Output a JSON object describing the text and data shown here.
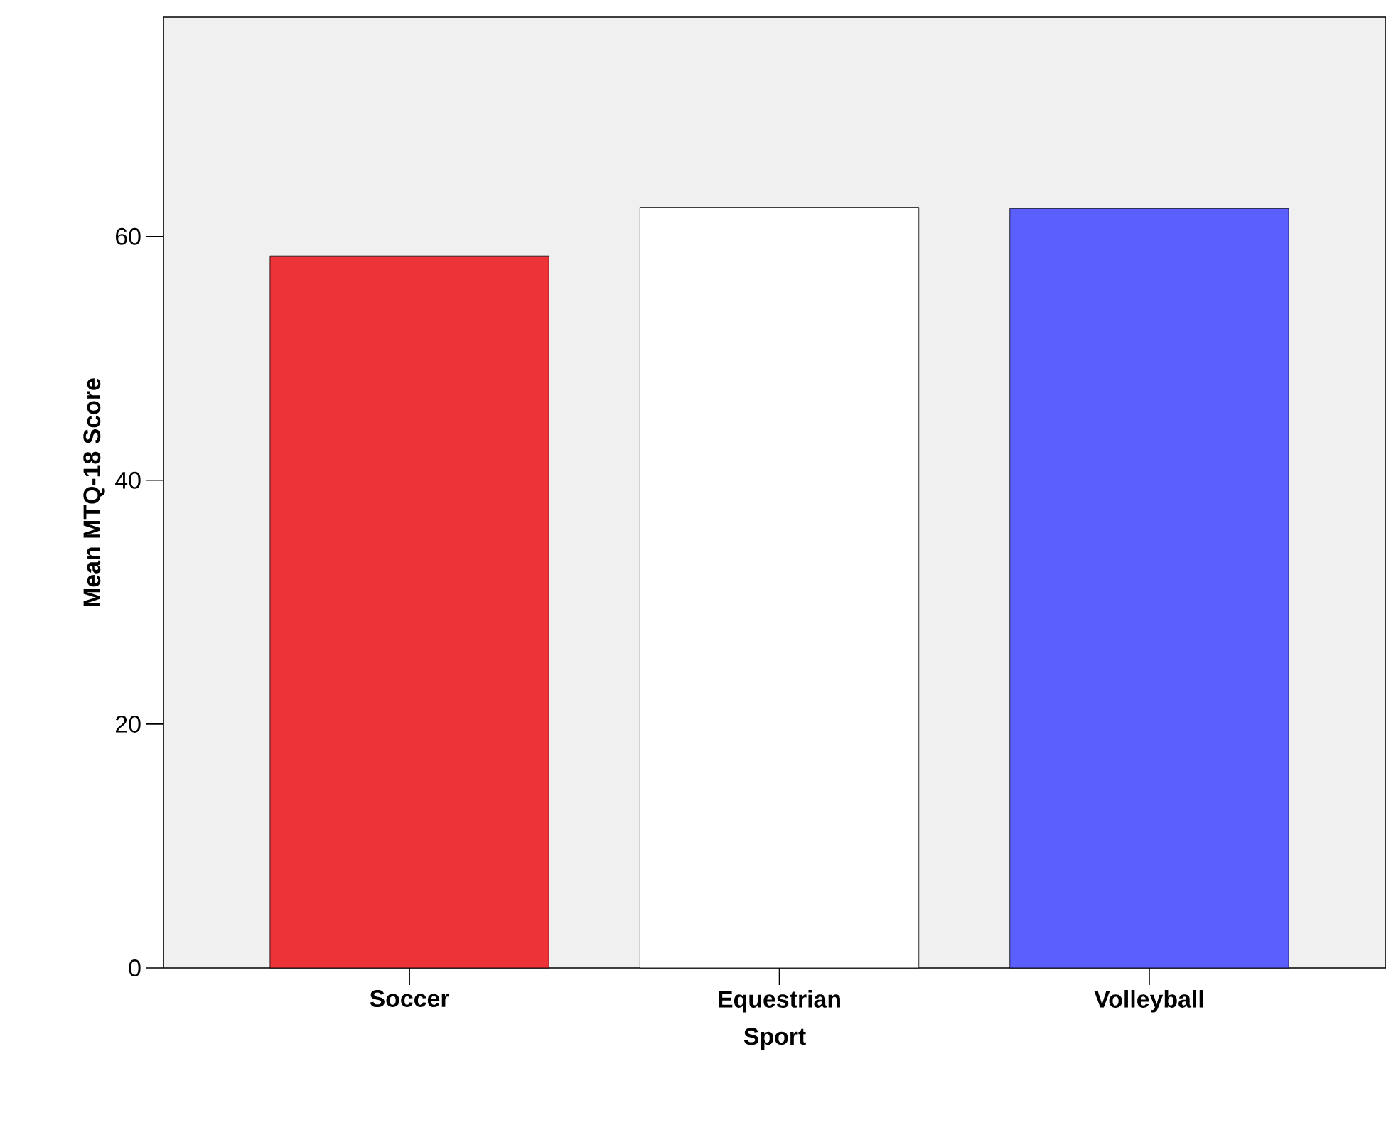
{
  "chart_data": {
    "type": "bar",
    "xlabel": "Sport",
    "ylabel": "Mean MTQ-18 Score",
    "categories": [
      "Soccer",
      "Equestrian",
      "Volleyball"
    ],
    "values": [
      58.4,
      62.4,
      62.3
    ],
    "colors": [
      "#ee3338",
      "#ffffff",
      "#5a5ffd"
    ],
    "ylim": [
      0,
      78
    ],
    "yticks": [
      0,
      20,
      40,
      60
    ],
    "grid": false
  }
}
